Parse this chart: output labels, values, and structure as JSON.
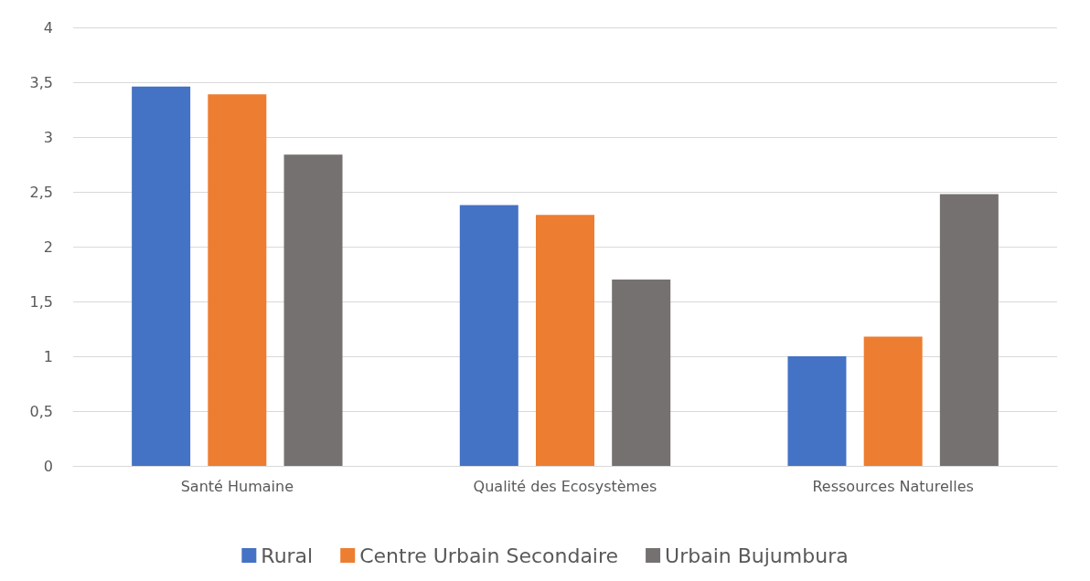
{
  "chart_data": {
    "type": "bar",
    "categories": [
      "Santé Humaine",
      "Qualité des Ecosystèmes",
      "Ressources Naturelles"
    ],
    "series": [
      {
        "name": "Rural",
        "color": "#4472c4",
        "values": [
          3.46,
          2.38,
          1.0
        ]
      },
      {
        "name": "Centre Urbain Secondaire",
        "color": "#ed7d31",
        "values": [
          3.39,
          2.29,
          1.18
        ]
      },
      {
        "name": "Urbain Bujumbura",
        "color": "#767171",
        "values": [
          2.84,
          1.7,
          2.48
        ]
      }
    ],
    "ylim": [
      0,
      4
    ],
    "yticks": [
      0,
      {
        "value": 0.5,
        "label": "0,5"
      },
      1,
      {
        "value": 1.5,
        "label": "1,5"
      },
      2,
      {
        "value": 2.5,
        "label": "2,5"
      },
      3,
      {
        "value": 3.5,
        "label": "3,5"
      },
      4
    ],
    "grid": "y",
    "legend": "bottom"
  }
}
